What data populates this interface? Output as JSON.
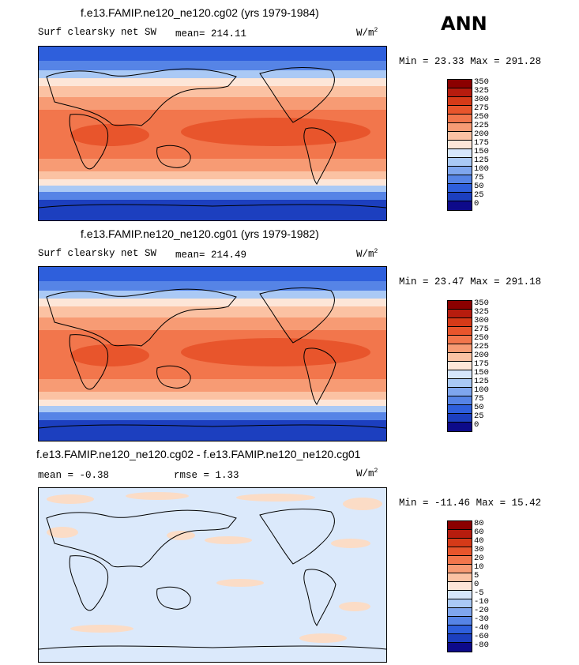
{
  "season_label": "ANN",
  "panels": [
    {
      "title": "f.e13.FAMIP.ne120_ne120.cg02 (yrs 1979-1984)",
      "variable": "Surf clearsky net SW",
      "mean_label": "mean=",
      "mean": "214.11",
      "units": "W/m",
      "units_sup": "2",
      "min_label": "Min =",
      "min": "23.33",
      "max_label": "Max =",
      "max": "291.28",
      "levels": [
        "350",
        "325",
        "300",
        "275",
        "250",
        "225",
        "200",
        "175",
        "150",
        "125",
        "100",
        "75",
        "50",
        "25",
        "0"
      ]
    },
    {
      "title": "f.e13.FAMIP.ne120_ne120.cg01 (yrs 1979-1982)",
      "variable": "Surf clearsky net SW",
      "mean_label": "mean=",
      "mean": "214.49",
      "units": "W/m",
      "units_sup": "2",
      "min_label": "Min =",
      "min": "23.47",
      "max_label": "Max =",
      "max": "291.18",
      "levels": [
        "350",
        "325",
        "300",
        "275",
        "250",
        "225",
        "200",
        "175",
        "150",
        "125",
        "100",
        "75",
        "50",
        "25",
        "0"
      ]
    },
    {
      "title": "f.e13.FAMIP.ne120_ne120.cg02 - f.e13.FAMIP.ne120_ne120.cg01",
      "mean_label": "mean =",
      "mean": "-0.38",
      "rmse_label": "rmse =",
      "rmse": "1.33",
      "units": "W/m",
      "units_sup": "2",
      "min_label": "Min =",
      "min": "-11.46",
      "max_label": "Max =",
      "max": "15.42",
      "levels": [
        "80",
        "60",
        "40",
        "30",
        "20",
        "10",
        "5",
        "0",
        "-5",
        "-10",
        "-20",
        "-30",
        "-40",
        "-60",
        "-80"
      ]
    }
  ],
  "colors": {
    "scale": [
      "#8b0000",
      "#b71c0e",
      "#d63a18",
      "#e8552c",
      "#f2764c",
      "#f79b74",
      "#fbc2a3",
      "#fde6d8",
      "#d6e6fb",
      "#aac9f5",
      "#7fa6ee",
      "#5684e6",
      "#2e5fdc",
      "#1c3fbf",
      "#0d0a8a"
    ],
    "diff_background": "#dbe9fb",
    "diff_warm": "#fbdcc6"
  }
}
